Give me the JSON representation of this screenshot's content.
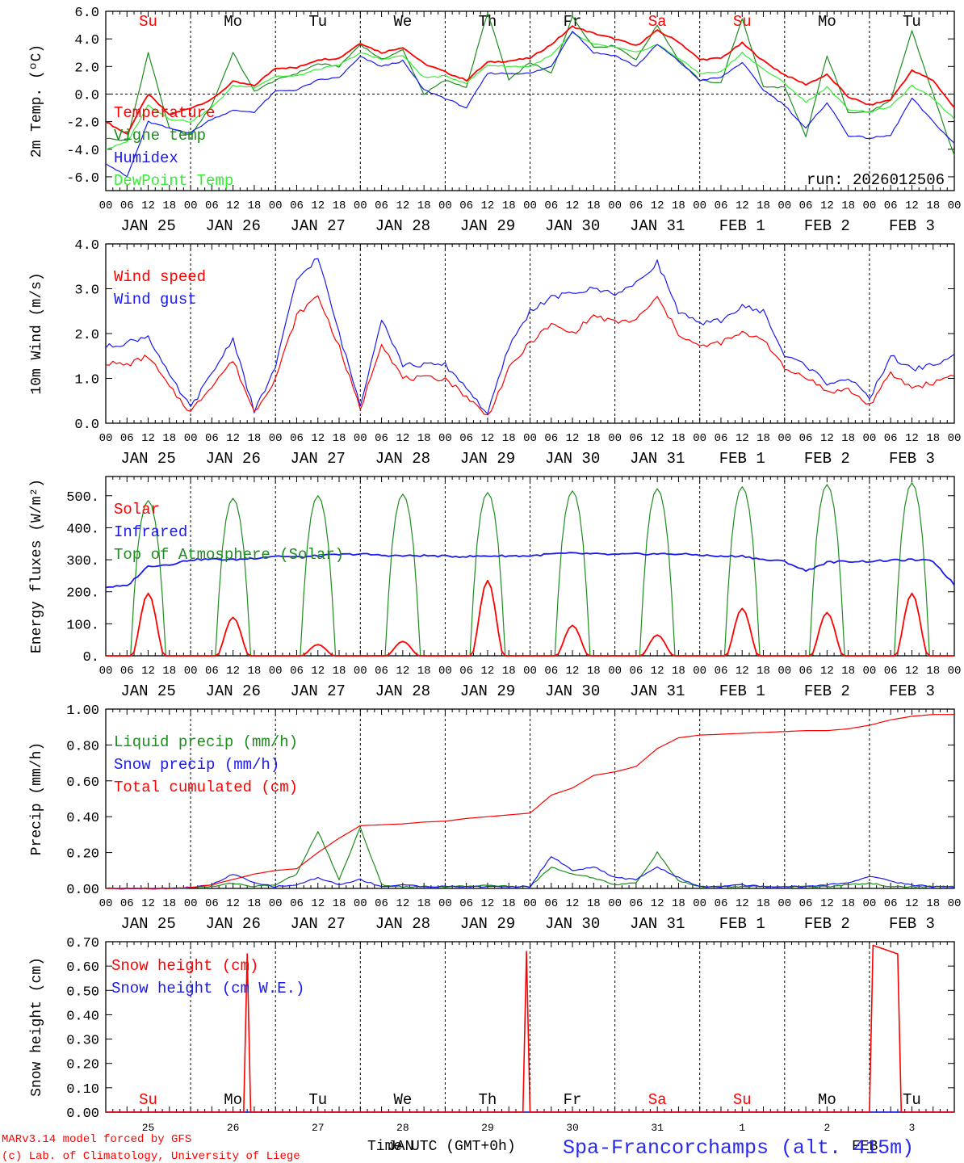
{
  "colors": {
    "red": "#ff0000",
    "green": "#1e8c1e",
    "lightgreen": "#33ee33",
    "blue": "#1a1aee",
    "black": "#000000"
  },
  "footer": {
    "model_line": "MARv3.14 model forced by GFS",
    "credit_line": "(c) Lab. of Climatology, University of Liege",
    "x_title": "Time UTC (GMT+0h)",
    "overlap_label": "JAN",
    "overlap_label2": "FEB",
    "station": "Spa-Francorchamps (alt. 415m)"
  },
  "hour_ticks": [
    "00",
    "06",
    "12",
    "18"
  ],
  "day_labels": [
    "JAN 25",
    "JAN 26",
    "JAN 27",
    "JAN 28",
    "JAN 29",
    "JAN 30",
    "JAN 31",
    "FEB  1",
    "FEB  2",
    "FEB  3"
  ],
  "weekdays": [
    "Su",
    "Mo",
    "Tu",
    "We",
    "Th",
    "Fr",
    "Sa",
    "Su",
    "Mo",
    "Tu"
  ],
  "weekday_colors": [
    "red",
    "black",
    "black",
    "black",
    "black",
    "black",
    "red",
    "red",
    "black",
    "black"
  ],
  "bottom_day_numbers": [
    "25",
    "26",
    "27",
    "28",
    "29",
    "30",
    "31",
    "1",
    "2",
    "3"
  ],
  "chart_data": [
    {
      "type": "line",
      "ylabel": "2m Temp. (ºC)",
      "ylim": [
        -7,
        6
      ],
      "ticks": [
        "6.0",
        "4.0",
        "2.0",
        "0.0",
        "-2.0",
        "-4.0",
        "-6.0"
      ],
      "tick_values": [
        6,
        4,
        2,
        0,
        -2,
        -4,
        -6
      ],
      "zero_line": true,
      "run_label": "run: 2026012506",
      "x": [
        0,
        6,
        12,
        18,
        24,
        30,
        36,
        42,
        48,
        54,
        60,
        66,
        72,
        78,
        84,
        90,
        96,
        102,
        108,
        114,
        120,
        126,
        132,
        138,
        144,
        150,
        156,
        162,
        168,
        174,
        180,
        186,
        192,
        198,
        204,
        210,
        216,
        222,
        228,
        234,
        240
      ],
      "series": [
        {
          "name": "Temperature",
          "color": "red",
          "values": [
            -2.0,
            -2.9,
            0.0,
            -1.5,
            -1.0,
            -0.4,
            0.9,
            0.6,
            1.9,
            1.9,
            2.5,
            2.6,
            3.7,
            3.0,
            3.4,
            2.2,
            1.6,
            1.0,
            2.3,
            2.4,
            2.6,
            3.6,
            4.9,
            4.4,
            4.0,
            3.5,
            4.6,
            3.8,
            2.5,
            2.6,
            3.7,
            2.4,
            1.4,
            0.7,
            1.4,
            -0.2,
            -0.8,
            -0.4,
            1.7,
            1.0,
            -1.0
          ]
        },
        {
          "name": "Vigne temp",
          "color": "green",
          "values": [
            -3.2,
            -3.4,
            3.0,
            -2.5,
            -3.0,
            -0.8,
            3.0,
            0.2,
            1.0,
            1.5,
            2.2,
            2.0,
            3.6,
            2.5,
            3.2,
            0.0,
            1.0,
            0.5,
            5.9,
            1.0,
            2.3,
            1.5,
            5.6,
            3.4,
            3.5,
            2.5,
            5.0,
            2.5,
            1.0,
            0.8,
            5.5,
            0.5,
            0.5,
            -3.1,
            2.8,
            -1.3,
            -1.3,
            -0.5,
            4.6,
            0.0,
            -4.5
          ]
        },
        {
          "name": "Humidex",
          "color": "blue",
          "values": [
            -5.0,
            -6.0,
            -2.0,
            -2.5,
            -2.8,
            -1.8,
            -1.2,
            -1.3,
            0.2,
            0.3,
            1.0,
            1.2,
            2.7,
            2.0,
            2.4,
            0.3,
            -0.3,
            -1.0,
            1.5,
            1.5,
            1.5,
            2.0,
            4.6,
            3.0,
            2.8,
            2.0,
            3.6,
            2.4,
            1.0,
            1.2,
            2.3,
            0.3,
            -0.8,
            -2.5,
            -0.6,
            -3.0,
            -3.2,
            -3.0,
            -0.3,
            -2.0,
            -3.6
          ]
        },
        {
          "name": "DewPoint Temp",
          "color": "lightgreen",
          "values": [
            -4.0,
            -3.5,
            -0.8,
            -1.8,
            -2.0,
            -1.0,
            0.6,
            0.5,
            1.3,
            1.3,
            1.8,
            2.1,
            3.0,
            2.5,
            2.8,
            1.2,
            1.3,
            0.8,
            2.1,
            2.0,
            2.0,
            2.8,
            4.4,
            3.6,
            3.4,
            3.0,
            3.6,
            2.6,
            1.5,
            1.6,
            3.0,
            1.8,
            0.8,
            -0.6,
            0.5,
            -1.1,
            -1.3,
            -0.9,
            0.6,
            -0.3,
            -1.8
          ]
        }
      ]
    },
    {
      "type": "line",
      "ylabel": "10m Wind (m/s)",
      "ylim": [
        0,
        4
      ],
      "ticks": [
        "4.0",
        "3.0",
        "2.0",
        "1.0",
        "0.0"
      ],
      "tick_values": [
        4,
        3,
        2,
        1,
        0
      ],
      "x": [
        0,
        6,
        12,
        18,
        24,
        30,
        36,
        42,
        48,
        54,
        60,
        66,
        72,
        78,
        84,
        90,
        96,
        102,
        108,
        114,
        120,
        126,
        132,
        138,
        144,
        150,
        156,
        162,
        168,
        174,
        180,
        186,
        192,
        198,
        204,
        210,
        216,
        222,
        228,
        234,
        240
      ],
      "series": [
        {
          "name": "Wind speed",
          "color": "red",
          "values": [
            1.35,
            1.3,
            1.5,
            0.8,
            0.25,
            0.85,
            1.4,
            0.25,
            1.0,
            2.4,
            2.85,
            1.7,
            0.3,
            1.8,
            1.0,
            1.0,
            1.0,
            0.6,
            0.15,
            1.2,
            1.8,
            2.2,
            2.0,
            2.4,
            2.25,
            2.3,
            2.8,
            2.0,
            1.7,
            1.8,
            2.0,
            1.9,
            1.2,
            1.05,
            0.7,
            0.75,
            0.4,
            1.1,
            0.8,
            0.9,
            1.1
          ]
        },
        {
          "name": "Wind gust",
          "color": "blue",
          "values": [
            1.7,
            1.8,
            1.95,
            1.05,
            0.35,
            1.1,
            1.9,
            0.25,
            1.25,
            3.2,
            3.7,
            2.0,
            0.4,
            2.35,
            1.3,
            1.3,
            1.3,
            0.8,
            0.2,
            1.7,
            2.5,
            2.8,
            2.9,
            3.0,
            2.9,
            3.1,
            3.6,
            2.5,
            2.2,
            2.3,
            2.6,
            2.5,
            1.5,
            1.3,
            0.9,
            1.0,
            0.55,
            1.5,
            1.2,
            1.3,
            1.5
          ]
        }
      ]
    },
    {
      "type": "line",
      "ylabel": "Energy fluxes (W/m²)",
      "ylim": [
        0,
        560
      ],
      "ticks": [
        "500.",
        "400.",
        "300.",
        "200.",
        "100.",
        "0."
      ],
      "tick_values": [
        500,
        400,
        300,
        200,
        100,
        0
      ],
      "solar_peaks": [
        195,
        120,
        35,
        45,
        235,
        95,
        65,
        148,
        135,
        195
      ],
      "toa_peaks": [
        485,
        492,
        500,
        505,
        510,
        515,
        522,
        528,
        535,
        540
      ],
      "x": [
        0,
        6,
        12,
        18,
        24,
        30,
        36,
        42,
        48,
        54,
        60,
        66,
        72,
        78,
        84,
        90,
        96,
        102,
        108,
        114,
        120,
        126,
        132,
        138,
        144,
        150,
        156,
        162,
        168,
        174,
        180,
        186,
        192,
        198,
        204,
        210,
        216,
        222,
        228,
        234,
        240
      ],
      "series": [
        {
          "name": "Solar",
          "color": "red"
        },
        {
          "name": "Infrared",
          "color": "blue",
          "values": [
            215,
            218,
            280,
            285,
            300,
            302,
            300,
            305,
            312,
            308,
            312,
            316,
            318,
            314,
            312,
            313,
            311,
            310,
            312,
            312,
            312,
            318,
            320,
            318,
            316,
            318,
            318,
            318,
            315,
            310,
            312,
            300,
            295,
            265,
            292,
            295,
            295,
            298,
            300,
            296,
            222
          ]
        },
        {
          "name": "Top of Atmosphere (Solar)",
          "color": "green"
        }
      ]
    },
    {
      "type": "line",
      "ylabel": "Precip (mm/h)",
      "ylim": [
        0,
        1
      ],
      "ticks": [
        "1.00",
        "0.80",
        "0.60",
        "0.40",
        "0.20",
        "0.00"
      ],
      "tick_values": [
        1.0,
        0.8,
        0.6,
        0.4,
        0.2,
        0.0
      ],
      "x": [
        0,
        6,
        12,
        18,
        24,
        30,
        36,
        42,
        48,
        54,
        60,
        66,
        72,
        78,
        84,
        90,
        96,
        102,
        108,
        114,
        120,
        126,
        132,
        138,
        144,
        150,
        156,
        162,
        168,
        174,
        180,
        186,
        192,
        198,
        204,
        210,
        216,
        222,
        228,
        234,
        240
      ],
      "series": [
        {
          "name": "Liquid precip (mm/h)",
          "color": "green",
          "values": [
            0,
            0,
            0,
            0,
            0.005,
            0.01,
            0.03,
            0.01,
            0.02,
            0.08,
            0.32,
            0.05,
            0.34,
            0.02,
            0.01,
            0.01,
            0.01,
            0.01,
            0.02,
            0.01,
            0.01,
            0.12,
            0.08,
            0.06,
            0.02,
            0.03,
            0.2,
            0.04,
            0.01,
            0.01,
            0.01,
            0.01,
            0.01,
            0.01,
            0.01,
            0.02,
            0.03,
            0.01,
            0.01,
            0.01,
            0.01
          ]
        },
        {
          "name": "Snow precip (mm/h)",
          "color": "blue",
          "values": [
            0,
            0,
            0,
            0,
            0.005,
            0.02,
            0.08,
            0.03,
            0.01,
            0.02,
            0.06,
            0.02,
            0.05,
            0.01,
            0.02,
            0.01,
            0.01,
            0.01,
            0.01,
            0.01,
            0.01,
            0.18,
            0.1,
            0.12,
            0.06,
            0.05,
            0.12,
            0.06,
            0.01,
            0.01,
            0.02,
            0.01,
            0.01,
            0.01,
            0.02,
            0.03,
            0.07,
            0.04,
            0.02,
            0.01,
            0.01
          ]
        },
        {
          "name": "Total cumulated (cm)",
          "color": "red",
          "values": [
            0,
            0,
            0,
            0,
            0.005,
            0.02,
            0.05,
            0.08,
            0.1,
            0.11,
            0.2,
            0.28,
            0.35,
            0.355,
            0.36,
            0.37,
            0.375,
            0.39,
            0.4,
            0.41,
            0.42,
            0.52,
            0.56,
            0.63,
            0.65,
            0.68,
            0.78,
            0.84,
            0.855,
            0.86,
            0.865,
            0.87,
            0.875,
            0.88,
            0.88,
            0.89,
            0.91,
            0.94,
            0.96,
            0.97,
            0.97
          ]
        }
      ]
    },
    {
      "type": "line",
      "ylabel": "Snow height (cm)",
      "ylim": [
        0,
        0.7
      ],
      "ticks": [
        "0.70",
        "0.60",
        "0.50",
        "0.40",
        "0.30",
        "0.20",
        "0.10",
        "0.00"
      ],
      "tick_values": [
        0.7,
        0.6,
        0.5,
        0.4,
        0.3,
        0.2,
        0.1,
        0.0
      ],
      "series": [
        {
          "name": "Snow height (cm)",
          "color": "red",
          "points": [
            [
              0,
              0
            ],
            [
              39,
              0
            ],
            [
              40,
              0.65
            ],
            [
              41,
              0
            ],
            [
              118,
              0
            ],
            [
              119,
              0.66
            ],
            [
              120,
              0
            ],
            [
              216,
              0
            ],
            [
              217,
              0.685
            ],
            [
              220,
              0.67
            ],
            [
              224,
              0.65
            ],
            [
              225,
              0
            ],
            [
              240,
              0
            ]
          ]
        },
        {
          "name": "Snow height (cm W.E.)",
          "color": "blue",
          "points": [
            [
              0,
              0
            ],
            [
              240,
              0
            ]
          ]
        }
      ]
    }
  ]
}
